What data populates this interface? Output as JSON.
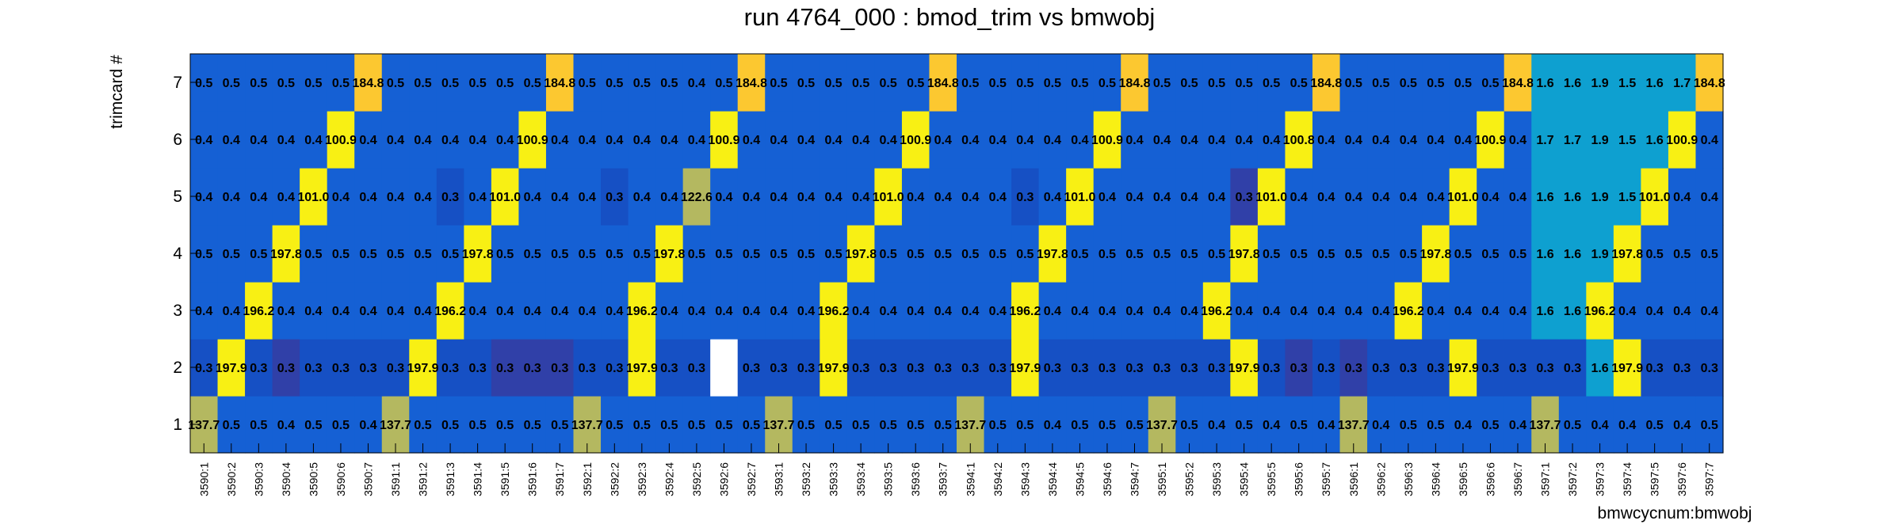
{
  "chart_data": {
    "type": "heatmap",
    "title": "run 4764_000 : bmod_trim vs bmwobj",
    "xlabel": "bmwcycnum:bmwobj",
    "ylabel": "trimcard #",
    "x_categories": [
      "3590:1",
      "3590:2",
      "3590:3",
      "3590:4",
      "3590:5",
      "3590:6",
      "3590:7",
      "3591:1",
      "3591:2",
      "3591:3",
      "3591:4",
      "3591:5",
      "3591:6",
      "3591:7",
      "3592:1",
      "3592:2",
      "3592:3",
      "3592:4",
      "3592:5",
      "3592:6",
      "3592:7",
      "3593:1",
      "3593:2",
      "3593:3",
      "3593:4",
      "3593:5",
      "3593:6",
      "3593:7",
      "3594:1",
      "3594:2",
      "3594:3",
      "3594:4",
      "3594:5",
      "3594:6",
      "3594:7",
      "3595:1",
      "3595:2",
      "3595:3",
      "3595:4",
      "3595:5",
      "3595:6",
      "3595:7",
      "3596:1",
      "3596:2",
      "3596:3",
      "3596:4",
      "3596:5",
      "3596:6",
      "3596:7",
      "3597:1",
      "3597:2",
      "3597:3",
      "3597:4",
      "3597:5",
      "3597:6",
      "3597:7"
    ],
    "y_categories": [
      "1",
      "2",
      "3",
      "4",
      "5",
      "6",
      "7"
    ],
    "values": [
      [
        "137.7",
        "0.5",
        "0.5",
        "0.4",
        "0.5",
        "0.5",
        "0.4",
        "137.7",
        "0.5",
        "0.5",
        "0.5",
        "0.5",
        "0.5",
        "0.5",
        "137.7",
        "0.5",
        "0.5",
        "0.5",
        "0.5",
        "0.5",
        "0.5",
        "137.7",
        "0.5",
        "0.5",
        "0.5",
        "0.5",
        "0.5",
        "0.5",
        "137.7",
        "0.5",
        "0.5",
        "0.4",
        "0.5",
        "0.5",
        "0.5",
        "137.7",
        "0.5",
        "0.4",
        "0.5",
        "0.4",
        "0.5",
        "0.4",
        "137.7",
        "0.4",
        "0.5",
        "0.5",
        "0.4",
        "0.5",
        "0.4",
        "137.7",
        "0.5",
        "0.4",
        "0.4",
        "0.5",
        "0.4",
        "0.5"
      ],
      [
        "0.3",
        "197.9",
        "0.3",
        "0.3",
        "0.3",
        "0.3",
        "0.3",
        "0.3",
        "197.9",
        "0.3",
        "0.3",
        "0.3",
        "0.3",
        "0.3",
        "0.3",
        "0.3",
        "197.9",
        "0.3",
        "0.3",
        "",
        "0.3",
        "0.3",
        "0.3",
        "197.9",
        "0.3",
        "0.3",
        "0.3",
        "0.3",
        "0.3",
        "0.3",
        "197.9",
        "0.3",
        "0.3",
        "0.3",
        "0.3",
        "0.3",
        "0.3",
        "0.3",
        "197.9",
        "0.3",
        "0.3",
        "0.3",
        "0.3",
        "0.3",
        "0.3",
        "0.3",
        "197.9",
        "0.3",
        "0.3",
        "0.3",
        "0.3",
        "1.6",
        "197.9",
        "0.3",
        "0.3",
        "0.3",
        "0.3"
      ],
      [
        "0.4",
        "0.4",
        "196.2",
        "0.4",
        "0.4",
        "0.4",
        "0.4",
        "0.4",
        "0.4",
        "196.2",
        "0.4",
        "0.4",
        "0.4",
        "0.4",
        "0.4",
        "0.4",
        "196.2",
        "0.4",
        "0.4",
        "0.4",
        "0.4",
        "0.4",
        "0.4",
        "196.2",
        "0.4",
        "0.4",
        "0.4",
        "0.4",
        "0.4",
        "0.4",
        "196.2",
        "0.4",
        "0.4",
        "0.4",
        "0.4",
        "0.4",
        "0.4",
        "196.2",
        "0.4",
        "0.4",
        "0.4",
        "0.4",
        "0.4",
        "0.4",
        "196.2",
        "0.4",
        "0.4",
        "0.4",
        "0.4",
        "1.6",
        "1.6",
        "196.2",
        "0.4",
        "0.4",
        "0.4",
        "0.4"
      ],
      [
        "0.5",
        "0.5",
        "0.5",
        "197.8",
        "0.5",
        "0.5",
        "0.5",
        "0.5",
        "0.5",
        "0.5",
        "197.8",
        "0.5",
        "0.5",
        "0.5",
        "0.5",
        "0.5",
        "0.5",
        "197.8",
        "0.5",
        "0.5",
        "0.5",
        "0.5",
        "0.5",
        "0.5",
        "197.8",
        "0.5",
        "0.5",
        "0.5",
        "0.5",
        "0.5",
        "0.5",
        "197.8",
        "0.5",
        "0.5",
        "0.5",
        "0.5",
        "0.5",
        "0.5",
        "197.8",
        "0.5",
        "0.5",
        "0.5",
        "0.5",
        "0.5",
        "0.5",
        "197.8",
        "0.5",
        "0.5",
        "0.5",
        "1.6",
        "1.6",
        "1.9",
        "197.8",
        "0.5",
        "0.5",
        "0.5"
      ],
      [
        "0.4",
        "0.4",
        "0.4",
        "0.4",
        "101.0",
        "0.4",
        "0.4",
        "0.4",
        "0.4",
        "0.3",
        "0.4",
        "101.0",
        "0.4",
        "0.4",
        "0.4",
        "0.3",
        "0.4",
        "0.4",
        "122.6",
        "0.4",
        "0.4",
        "0.4",
        "0.4",
        "0.4",
        "0.4",
        "101.0",
        "0.4",
        "0.4",
        "0.4",
        "0.4",
        "0.3",
        "0.4",
        "101.0",
        "0.4",
        "0.4",
        "0.4",
        "0.4",
        "0.4",
        "0.3",
        "101.0",
        "0.4",
        "0.4",
        "0.4",
        "0.4",
        "0.4",
        "0.4",
        "101.0",
        "0.4",
        "0.4",
        "1.6",
        "1.6",
        "1.9",
        "1.5",
        "101.0",
        "0.4",
        "0.4"
      ],
      [
        "0.4",
        "0.4",
        "0.4",
        "0.4",
        "0.4",
        "100.9",
        "0.4",
        "0.4",
        "0.4",
        "0.4",
        "0.4",
        "0.4",
        "100.9",
        "0.4",
        "0.4",
        "0.4",
        "0.4",
        "0.4",
        "0.4",
        "100.9",
        "0.4",
        "0.4",
        "0.4",
        "0.4",
        "0.4",
        "0.4",
        "100.9",
        "0.4",
        "0.4",
        "0.4",
        "0.4",
        "0.4",
        "0.4",
        "100.9",
        "0.4",
        "0.4",
        "0.4",
        "0.4",
        "0.4",
        "0.4",
        "100.8",
        "0.4",
        "0.4",
        "0.4",
        "0.4",
        "0.4",
        "0.4",
        "100.9",
        "0.4",
        "1.7",
        "1.7",
        "1.9",
        "1.5",
        "1.6",
        "100.9",
        "0.4"
      ],
      [
        "0.5",
        "0.5",
        "0.5",
        "0.5",
        "0.5",
        "0.5",
        "184.8",
        "0.5",
        "0.5",
        "0.5",
        "0.5",
        "0.5",
        "0.5",
        "184.8",
        "0.5",
        "0.5",
        "0.5",
        "0.5",
        "0.4",
        "0.5",
        "184.8",
        "0.5",
        "0.5",
        "0.5",
        "0.5",
        "0.5",
        "0.5",
        "184.8",
        "0.5",
        "0.5",
        "0.5",
        "0.5",
        "0.5",
        "0.5",
        "184.8",
        "0.5",
        "0.5",
        "0.5",
        "0.5",
        "0.5",
        "0.5",
        "184.8",
        "0.5",
        "0.5",
        "0.5",
        "0.5",
        "0.5",
        "0.5",
        "184.8",
        "1.6",
        "1.6",
        "1.9",
        "1.5",
        "1.6",
        "1.7",
        "184.8"
      ]
    ],
    "label_display": "values drawn clipped to the cell width, as in the original",
    "grid": false,
    "colors": {
      "background": "#ffffff",
      "low": "#1560d4",
      "low_dark": "#1650c4",
      "darker": "#3040a8",
      "mid": "#0ea0d0",
      "olive": "#b4b860",
      "high_yellow": "#f8f014",
      "high_orange": "#fcc830",
      "empty": "#ffffff",
      "text": "#000000"
    }
  }
}
